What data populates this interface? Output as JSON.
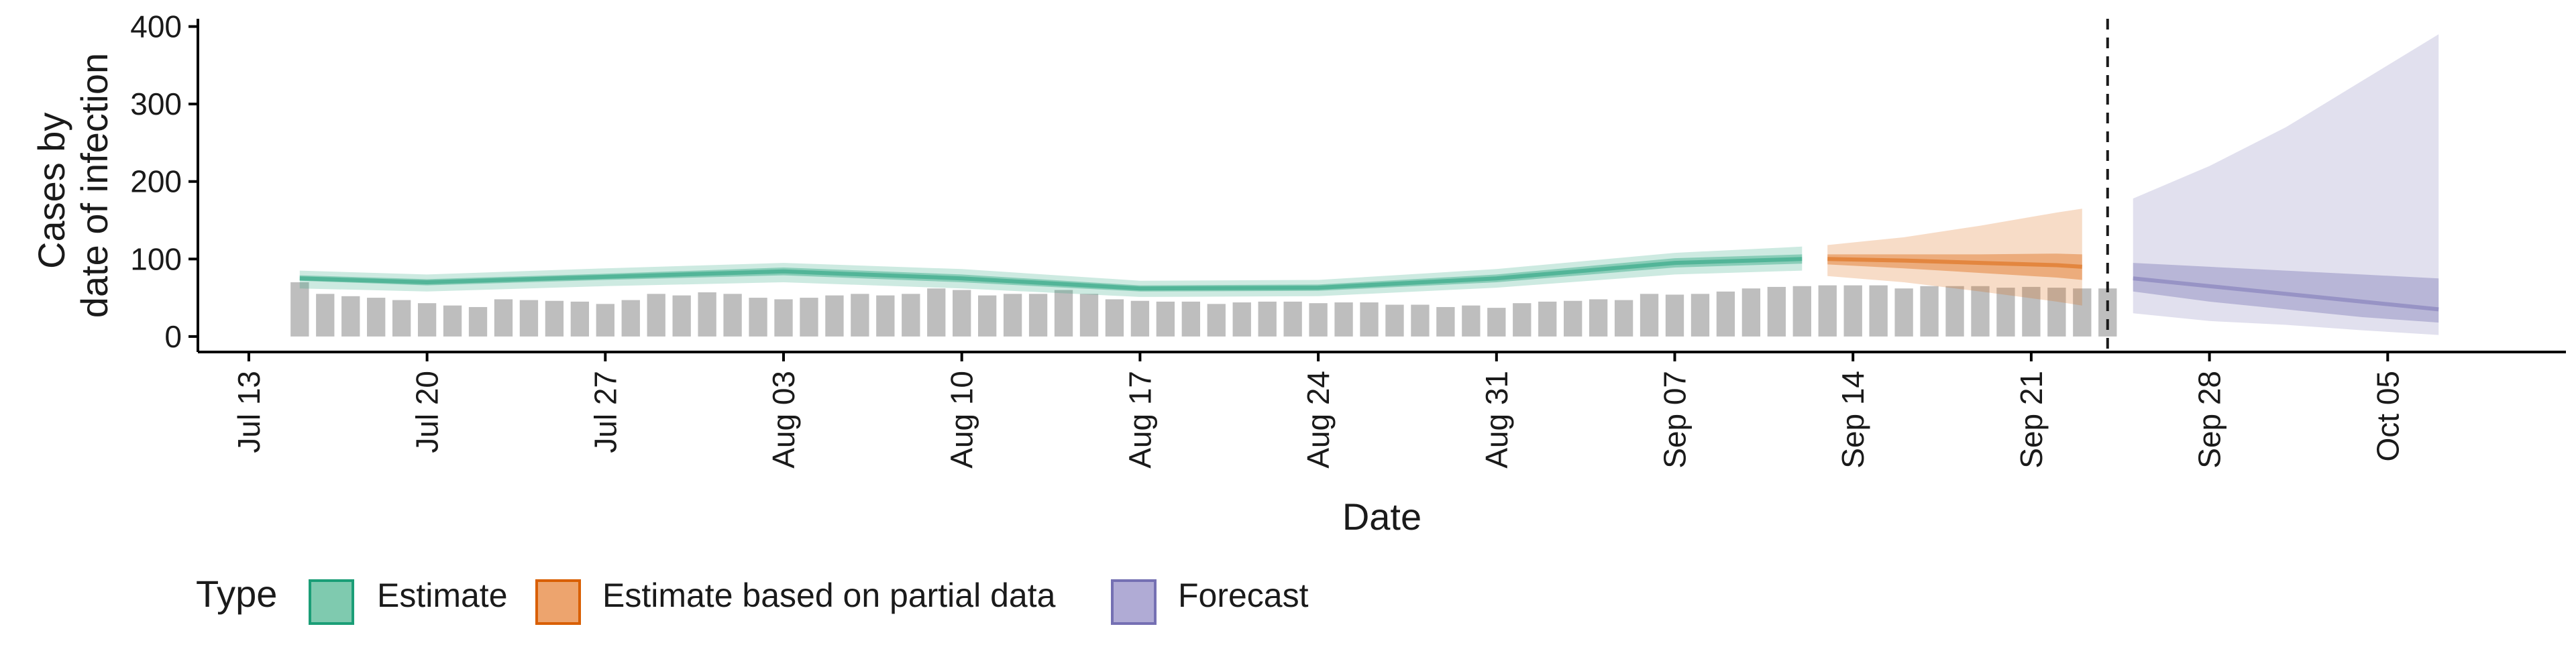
{
  "chart_data": {
    "type": "bar",
    "x_axis": {
      "label": "Date",
      "ticks": [
        "Jul 13",
        "Jul 20",
        "Jul 27",
        "Aug 03",
        "Aug 10",
        "Aug 17",
        "Aug 24",
        "Aug 31",
        "Sep 07",
        "Sep 14",
        "Sep 21",
        "Sep 28",
        "Oct 05"
      ],
      "range": [
        "2020-07-11",
        "2020-10-12"
      ]
    },
    "y_axis": {
      "label_lines": [
        "Cases by",
        "date of infection"
      ],
      "ticks": [
        0,
        100,
        200,
        300,
        400
      ],
      "range": [
        -20,
        410
      ]
    },
    "bars": {
      "start_date": "2020-07-15",
      "color": "#bebebe",
      "values": [
        70,
        55,
        52,
        50,
        47,
        43,
        40,
        38,
        48,
        47,
        46,
        45,
        42,
        47,
        55,
        53,
        57,
        55,
        50,
        48,
        50,
        53,
        55,
        53,
        55,
        62,
        60,
        53,
        55,
        55,
        60,
        55,
        48,
        46,
        45,
        45,
        42,
        44,
        45,
        45,
        43,
        44,
        44,
        41,
        41,
        38,
        40,
        37,
        43,
        45,
        46,
        48,
        47,
        55,
        54,
        55,
        58,
        62,
        64,
        65,
        66,
        66,
        66,
        62,
        65,
        65,
        65,
        63,
        64,
        63,
        62,
        62
      ]
    },
    "vline_date": "2020-09-24",
    "legend": {
      "title": "Type",
      "items": [
        {
          "label": "Estimate",
          "fill": "#7fcaaf",
          "stroke": "#1b9e77"
        },
        {
          "label": "Estimate based on partial data",
          "fill": "#eda46e",
          "stroke": "#d95f02"
        },
        {
          "label": "Forecast",
          "fill": "#b0abd5",
          "stroke": "#7570b3"
        }
      ]
    },
    "series": [
      {
        "name": "Estimate",
        "color": "#1b9e77",
        "dates": [
          "2020-07-15",
          "2020-07-20",
          "2020-07-27",
          "2020-08-03",
          "2020-08-10",
          "2020-08-17",
          "2020-08-24",
          "2020-08-31",
          "2020-09-07",
          "2020-09-12"
        ],
        "median": [
          75,
          70,
          77,
          84,
          75,
          62,
          63,
          75,
          95,
          100
        ],
        "inner_low": [
          72,
          66,
          73,
          79,
          70,
          58,
          59,
          70,
          89,
          94
        ],
        "inner_high": [
          79,
          74,
          81,
          89,
          80,
          66,
          67,
          80,
          101,
          106
        ],
        "outer_low": [
          62,
          58,
          65,
          70,
          62,
          51,
          52,
          63,
          80,
          85
        ],
        "outer_high": [
          85,
          80,
          88,
          95,
          87,
          72,
          73,
          87,
          108,
          116
        ]
      },
      {
        "name": "Estimate based on partial data",
        "color": "#d95f02",
        "dates": [
          "2020-09-13",
          "2020-09-16",
          "2020-09-19",
          "2020-09-22",
          "2020-09-23"
        ],
        "median": [
          100,
          98,
          95,
          92,
          90
        ],
        "inner_low": [
          93,
          88,
          82,
          76,
          73
        ],
        "inner_high": [
          106,
          106,
          106,
          107,
          106
        ],
        "outer_low": [
          78,
          70,
          58,
          45,
          40
        ],
        "outer_high": [
          118,
          128,
          143,
          160,
          165
        ]
      },
      {
        "name": "Forecast",
        "color": "#7570b3",
        "dates": [
          "2020-09-25",
          "2020-09-28",
          "2020-10-01",
          "2020-10-04",
          "2020-10-07"
        ],
        "median": [
          75,
          65,
          55,
          45,
          35
        ],
        "inner_low": [
          58,
          45,
          35,
          25,
          18
        ],
        "inner_high": [
          95,
          90,
          85,
          80,
          75
        ],
        "outer_low": [
          30,
          20,
          15,
          8,
          2
        ],
        "outer_high": [
          178,
          220,
          270,
          330,
          390
        ]
      }
    ]
  }
}
